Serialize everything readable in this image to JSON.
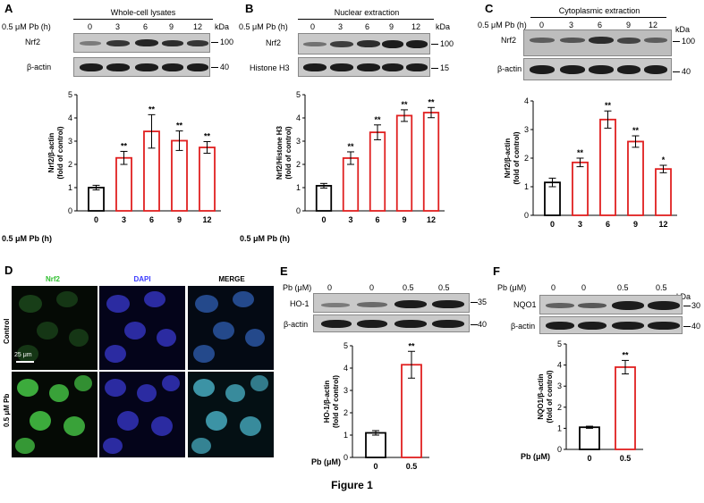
{
  "panels": {
    "A": {
      "letter": "A",
      "caption": "Whole-cell lysates",
      "cond_label": "0.5 μM Pb (h)",
      "lanes": [
        "0",
        "3",
        "6",
        "9",
        "12"
      ],
      "kda": "kDa",
      "rows": [
        {
          "name": "Nrf2",
          "marker": "100"
        },
        {
          "name": "β-actin",
          "marker": "40"
        }
      ]
    },
    "B": {
      "letter": "B",
      "caption": "Nuclear extraction",
      "cond_label": "0.5 μM Pb (h)",
      "lanes": [
        "0",
        "3",
        "6",
        "9",
        "12"
      ],
      "kda": "kDa",
      "rows": [
        {
          "name": "Nrf2",
          "marker": "100"
        },
        {
          "name": "Histone H3",
          "marker": "15"
        }
      ]
    },
    "C": {
      "letter": "C",
      "caption": "Cytoplasmic extraction",
      "cond_label": "0.5 μM Pb (h)",
      "lanes": [
        "0",
        "3",
        "6",
        "9",
        "12"
      ],
      "kda": "kDa",
      "rows": [
        {
          "name": "Nrf2",
          "marker": "100"
        },
        {
          "name": "β-actin",
          "marker": "40"
        }
      ]
    },
    "D": {
      "letter": "D",
      "columns": [
        "Nrf2",
        "DAPI",
        "MERGE"
      ],
      "column_colors": [
        "#2fbf2f",
        "#3b3bff",
        "#000000"
      ],
      "rows": [
        "Control",
        "0.5 μM Pb"
      ],
      "scale_bar": "25 μm"
    },
    "E": {
      "letter": "E",
      "cond_label": "Pb (μM)",
      "lanes": [
        "0",
        "0",
        "0.5",
        "0.5"
      ],
      "rows": [
        {
          "name": "HO-1",
          "marker": "35"
        },
        {
          "name": "β-actin",
          "marker": "40"
        }
      ]
    },
    "F": {
      "letter": "F",
      "cond_label": "Pb (μM)",
      "lanes": [
        "0",
        "0",
        "0.5",
        "0.5"
      ],
      "kda": "kDa",
      "rows": [
        {
          "name": "NQO1",
          "marker": "30"
        },
        {
          "name": "β-actin",
          "marker": "40"
        }
      ]
    }
  },
  "figure_caption": "Figure 1",
  "chart_data": [
    {
      "id": "A",
      "type": "bar",
      "ylabel_lines": [
        "Nrf2/β-actin",
        "(fold of control)"
      ],
      "xlabel": "0.5 μM Pb (h)",
      "categories": [
        "0",
        "3",
        "6",
        "9",
        "12"
      ],
      "values": [
        1.0,
        2.28,
        3.42,
        3.02,
        2.73
      ],
      "errors": [
        0.1,
        0.28,
        0.72,
        0.42,
        0.25
      ],
      "significance": [
        "",
        "**",
        "**",
        "**",
        "**"
      ],
      "ylim": [
        0,
        5
      ],
      "yticks": [
        0,
        1,
        2,
        3,
        4,
        5
      ],
      "bar_colors": [
        "#000000",
        "#e02020",
        "#e02020",
        "#e02020",
        "#e02020"
      ]
    },
    {
      "id": "B",
      "type": "bar",
      "ylabel_lines": [
        "Nrf2/Histone H3",
        "(fold of control)"
      ],
      "xlabel": "0.5 μM Pb (h)",
      "categories": [
        "0",
        "3",
        "6",
        "9",
        "12"
      ],
      "values": [
        1.08,
        2.27,
        3.38,
        4.1,
        4.23
      ],
      "errors": [
        0.1,
        0.27,
        0.32,
        0.25,
        0.22
      ],
      "significance": [
        "",
        "**",
        "**",
        "**",
        "**"
      ],
      "ylim": [
        0,
        5
      ],
      "yticks": [
        0,
        1,
        2,
        3,
        4,
        5
      ],
      "bar_colors": [
        "#000000",
        "#e02020",
        "#e02020",
        "#e02020",
        "#e02020"
      ]
    },
    {
      "id": "C",
      "type": "bar",
      "ylabel_lines": [
        "Nrf2/β-actin",
        "(fold of control)"
      ],
      "xlabel": "",
      "categories": [
        "0",
        "3",
        "6",
        "9",
        "12"
      ],
      "values": [
        1.15,
        1.85,
        3.35,
        2.58,
        1.62
      ],
      "errors": [
        0.15,
        0.15,
        0.3,
        0.2,
        0.13
      ],
      "significance": [
        "",
        "**",
        "**",
        "**",
        "*"
      ],
      "ylim": [
        0,
        4
      ],
      "yticks": [
        0,
        1,
        2,
        3,
        4
      ],
      "bar_colors": [
        "#000000",
        "#e02020",
        "#e02020",
        "#e02020",
        "#e02020"
      ]
    },
    {
      "id": "E",
      "type": "bar",
      "ylabel_lines": [
        "HO-1/β-actin",
        "(fold of control)"
      ],
      "xlabel": "Pb (μM)",
      "categories": [
        "0",
        "0.5"
      ],
      "values": [
        1.1,
        4.15
      ],
      "errors": [
        0.1,
        0.6
      ],
      "significance": [
        "",
        "**"
      ],
      "ylim": [
        0,
        5
      ],
      "yticks": [
        0,
        1,
        2,
        3,
        4,
        5
      ],
      "bar_colors": [
        "#000000",
        "#e02020"
      ]
    },
    {
      "id": "F",
      "type": "bar",
      "ylabel_lines": [
        "NQO1/β-actin",
        "(fold of control)"
      ],
      "xlabel": "Pb (μM)",
      "categories": [
        "0",
        "0.5"
      ],
      "values": [
        1.05,
        3.9
      ],
      "errors": [
        0.05,
        0.32
      ],
      "significance": [
        "",
        "**"
      ],
      "ylim": [
        0,
        5
      ],
      "yticks": [
        0,
        1,
        2,
        3,
        4,
        5
      ],
      "bar_colors": [
        "#000000",
        "#e02020"
      ]
    }
  ]
}
